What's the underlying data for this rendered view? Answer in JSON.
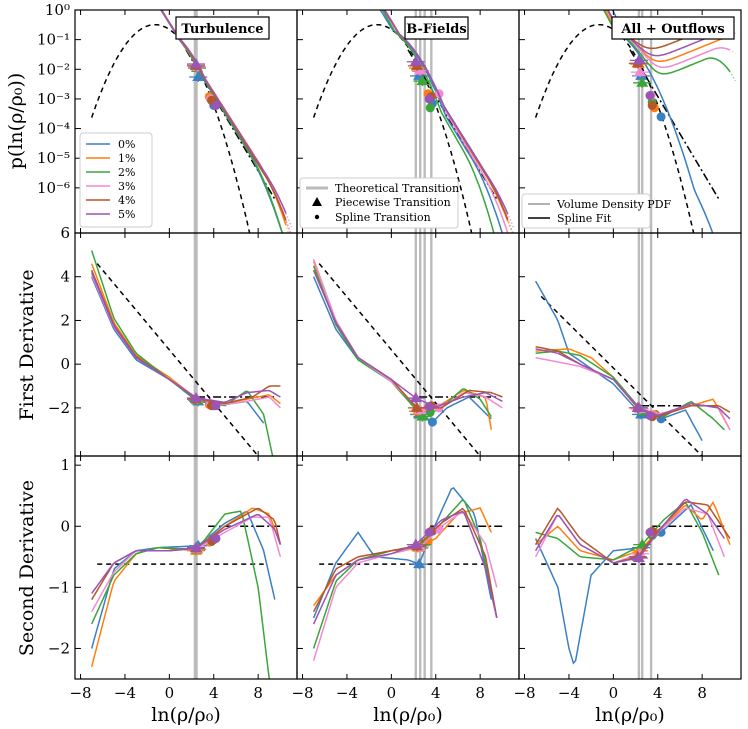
{
  "figure": {
    "x_axis_label": "ln(ρ/ρ₀)",
    "y_axis_labels": [
      "p(ln(ρ/ρ₀))",
      "First Derivative",
      "Second Derivative"
    ]
  },
  "chart_data": {
    "type": "line",
    "columns": [
      "Turbulence",
      "B-Fields",
      "All + Outflows"
    ],
    "x_ticks": [
      -8,
      -4,
      0,
      4,
      8
    ],
    "xlim": [
      -8.5,
      11.5
    ],
    "rows": [
      {
        "name": "pdf",
        "scale": "log",
        "ylim": [
          3e-08,
          1
        ],
        "y_ticks": [
          "10⁰",
          "10⁻¹",
          "10⁻²",
          "10⁻³",
          "10⁻⁴",
          "10⁻⁵",
          "10⁻⁶"
        ]
      },
      {
        "name": "first_derivative",
        "scale": "linear",
        "ylim": [
          -4.2,
          6
        ],
        "y_ticks": [
          6,
          4,
          2,
          0,
          -2
        ]
      },
      {
        "name": "second_derivative",
        "scale": "linear",
        "ylim": [
          -2.5,
          1.15
        ],
        "y_ticks": [
          1,
          0,
          -1,
          -2
        ]
      }
    ],
    "series": [
      {
        "name": "0%",
        "color": "#3b7fc4"
      },
      {
        "name": "1%",
        "color": "#ff7f0e"
      },
      {
        "name": "2%",
        "color": "#3aa63a"
      },
      {
        "name": "3%",
        "color": "#f28ad2"
      },
      {
        "name": "4%",
        "color": "#b5562b"
      },
      {
        "name": "5%",
        "color": "#9a55b5"
      }
    ],
    "transition_lines": {
      "Turbulence": [
        2.3,
        2.45
      ],
      "B-Fields": [
        2.2,
        2.6,
        3.0,
        3.6
      ],
      "All + Outflows": [
        2.3,
        2.6,
        3.4
      ]
    },
    "transitions": {
      "Turbulence": [
        {
          "x": [
            2.6,
            4.0
          ],
          "pdf": [
            0.0055,
            0.0006
          ],
          "d1": [
            -1.7,
            -1.9
          ],
          "d2": [
            -0.32,
            -0.22
          ]
        },
        {
          "x": [
            2.4,
            3.6
          ],
          "pdf": [
            0.013,
            0.0012
          ],
          "d1": [
            -1.6,
            -1.85
          ],
          "d2": [
            -0.4,
            -0.26
          ]
        },
        {
          "x": [
            2.5,
            3.8
          ],
          "pdf": [
            0.011,
            0.0009
          ],
          "d1": [
            -1.65,
            -1.85
          ],
          "d2": [
            -0.38,
            -0.25
          ]
        },
        {
          "x": [
            2.5,
            3.7
          ],
          "pdf": [
            0.012,
            0.001
          ],
          "d1": [
            -1.6,
            -1.8
          ],
          "d2": [
            -0.37,
            -0.24
          ]
        },
        {
          "x": [
            2.4,
            3.8
          ],
          "pdf": [
            0.013,
            0.0009
          ],
          "d1": [
            -1.6,
            -1.9
          ],
          "d2": [
            -0.36,
            -0.24
          ]
        },
        {
          "x": [
            2.4,
            4.2
          ],
          "pdf": [
            0.015,
            0.0006
          ],
          "d1": [
            -1.55,
            -1.9
          ],
          "d2": [
            -0.35,
            -0.2
          ]
        }
      ],
      "B-Fields": [
        {
          "x": [
            2.5,
            3.7
          ],
          "pdf": [
            0.006,
            0.0007
          ],
          "d1": [
            -2.3,
            -2.65
          ],
          "d2": [
            -0.62,
            -0.08
          ]
        },
        {
          "x": [
            2.4,
            3.3
          ],
          "pdf": [
            0.011,
            0.0015
          ],
          "d1": [
            -2.15,
            -2.0
          ],
          "d2": [
            -0.35,
            -0.25
          ]
        },
        {
          "x": [
            2.8,
            3.5
          ],
          "pdf": [
            0.004,
            0.0005
          ],
          "d1": [
            -2.4,
            -2.2
          ],
          "d2": [
            -0.3,
            -0.1
          ]
        },
        {
          "x": [
            2.6,
            4.3
          ],
          "pdf": [
            0.009,
            0.0015
          ],
          "d1": [
            -2.1,
            -2.0
          ],
          "d2": [
            -0.34,
            -0.05
          ]
        },
        {
          "x": [
            2.3,
            3.6
          ],
          "pdf": [
            0.013,
            0.0012
          ],
          "d1": [
            -2.0,
            -1.9
          ],
          "d2": [
            -0.33,
            -0.08
          ]
        },
        {
          "x": [
            2.2,
            3.4
          ],
          "pdf": [
            0.018,
            0.001
          ],
          "d1": [
            -1.55,
            -1.95
          ],
          "d2": [
            -0.3,
            -0.1
          ]
        }
      ],
      "All + Outflows": [
        {
          "x": [
            2.5,
            4.3
          ],
          "pdf": [
            0.006,
            0.00025
          ],
          "d1": [
            -2.3,
            -2.5
          ],
          "d2": [
            -0.35,
            -0.1
          ]
        },
        {
          "x": [
            2.3,
            3.7
          ],
          "pdf": [
            0.015,
            0.0005
          ],
          "d1": [
            -2.0,
            -2.3
          ],
          "d2": [
            -0.4,
            -0.1
          ]
        },
        {
          "x": [
            2.6,
            3.5
          ],
          "pdf": [
            0.0035,
            0.0008
          ],
          "d1": [
            -2.15,
            -2.4
          ],
          "d2": [
            -0.3,
            -0.15
          ]
        },
        {
          "x": [
            2.4,
            3.4
          ],
          "pdf": [
            0.008,
            0.0013
          ],
          "d1": [
            -2.05,
            -2.35
          ],
          "d2": [
            -0.45,
            -0.1
          ]
        },
        {
          "x": [
            2.2,
            3.5
          ],
          "pdf": [
            0.016,
            0.0006
          ],
          "d1": [
            -2.0,
            -2.4
          ],
          "d2": [
            -0.5,
            -0.08
          ]
        },
        {
          "x": [
            2.3,
            3.3
          ],
          "pdf": [
            0.02,
            0.0013
          ],
          "d1": [
            -2.0,
            -2.35
          ],
          "d2": [
            -0.52,
            -0.1
          ]
        }
      ]
    },
    "legend_series": {
      "entries": [
        "0%",
        "1%",
        "2%",
        "3%",
        "4%",
        "5%"
      ],
      "location": "lower-left",
      "panel": "Turbulence"
    },
    "legend_markers": {
      "entries": [
        {
          "label": "Theoretical Transition",
          "style": "thick-gray-line"
        },
        {
          "label": "Piecewise Transition",
          "style": "triangle"
        },
        {
          "label": "Spline Transition",
          "style": "dot"
        }
      ],
      "location": "lower-left",
      "panel": "B-Fields"
    },
    "legend_fit": {
      "entries": [
        {
          "label": "Volume Density PDF",
          "style": "gray-line"
        },
        {
          "label": "Spline Fit",
          "style": "black-line"
        }
      ],
      "location": "lower-left",
      "panel": "All + Outflows"
    }
  }
}
